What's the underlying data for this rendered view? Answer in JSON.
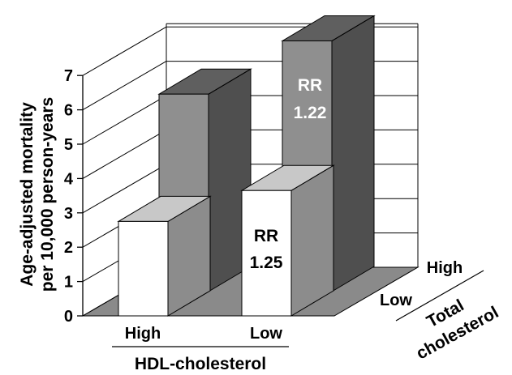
{
  "chart_data": {
    "type": "bar",
    "title": "",
    "ylabel_line1": "Age-adjusted mortality",
    "ylabel_line2": "per 10,000 person-years",
    "ylim": [
      0,
      7
    ],
    "yticks": [
      "0",
      "1",
      "2",
      "3",
      "4",
      "5",
      "6",
      "7"
    ],
    "x_axis": {
      "title": "HDL-cholesterol",
      "categories": [
        "High",
        "Low"
      ]
    },
    "depth_axis": {
      "title_line1": "Total",
      "title_line2": "cholesterol",
      "categories": [
        "Low",
        "High"
      ]
    },
    "series": [
      {
        "name": "Low",
        "values": [
          2.75,
          3.65
        ]
      },
      {
        "name": "High",
        "values": [
          5.75,
          7.3
        ]
      }
    ],
    "annotations": [
      {
        "hdl": "Low",
        "total_cholesterol": "Low",
        "line1": "RR",
        "line2": "1.25"
      },
      {
        "hdl": "Low",
        "total_cholesterol": "High",
        "line1": "RR",
        "line2": "1.22"
      }
    ],
    "grid": true,
    "colors": {
      "low_front": "#ffffff",
      "low_top": "#c8c8c8",
      "low_side": "#8c8c8c",
      "high_front": "#8f8f8f",
      "high_top": "#5f5f5f",
      "high_side": "#4f4f4f",
      "floor": "#8a8a8a",
      "grid": "#000000"
    }
  }
}
